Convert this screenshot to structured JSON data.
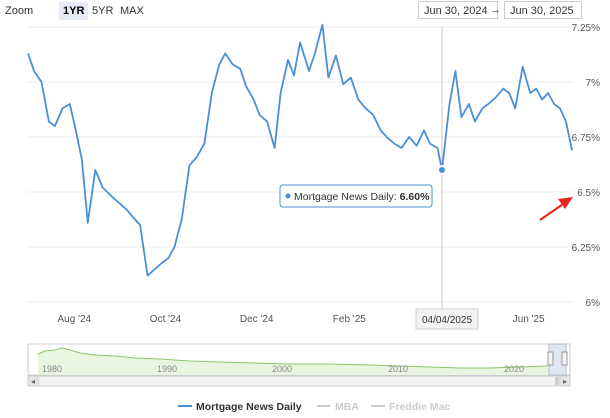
{
  "zoom": {
    "label": "Zoom",
    "buttons": [
      {
        "label": "1YR",
        "active": true
      },
      {
        "label": "5YR",
        "active": false
      },
      {
        "label": "MAX",
        "active": false
      }
    ]
  },
  "range": {
    "from": "Jun 30, 2024",
    "arrow": "→",
    "to": "Jun 30, 2025"
  },
  "tooltip": {
    "series": "Mortgage News Daily",
    "value": "6.60%"
  },
  "crosshair_label": "04/04/2025",
  "navigator": {
    "ticks": [
      "1980",
      "1990",
      "2000",
      "2010",
      "2020"
    ],
    "left_arrow": "◂",
    "right_arrow": "▸"
  },
  "legend": [
    {
      "name": "Mortgage News Daily",
      "color": "#4a90d9",
      "active": true
    },
    {
      "name": "MBA",
      "color": "#cccccc",
      "active": false
    },
    {
      "name": "Freddie Mac",
      "color": "#cccccc",
      "active": false
    }
  ],
  "annotation": {
    "type": "arrow",
    "color": "#e8281c",
    "target": "latest-value"
  },
  "chart_data": {
    "type": "line",
    "title": "",
    "xlabel": "",
    "ylabel": "",
    "x_tick_labels": [
      "Aug '24",
      "Oct '24",
      "Dec '24",
      "Feb '25",
      "Jun '25"
    ],
    "x_tick_dates": [
      "2024-08-01",
      "2024-10-01",
      "2024-12-01",
      "2025-02-01",
      "2025-06-01"
    ],
    "xlim": [
      "2024-07-01",
      "2025-06-30"
    ],
    "y_tick_labels": [
      "6%",
      "6.25%",
      "6.5%",
      "6.75%",
      "7%",
      "7.25%"
    ],
    "y_ticks": [
      6.0,
      6.25,
      6.5,
      6.75,
      7.0,
      7.25
    ],
    "ylim": [
      6.0,
      7.25
    ],
    "grid": true,
    "series": [
      {
        "name": "Mortgage News Daily",
        "color": "#4a90d9",
        "x": [
          "2024-07-01",
          "2024-07-05",
          "2024-07-10",
          "2024-07-15",
          "2024-07-19",
          "2024-07-24",
          "2024-07-29",
          "2024-08-02",
          "2024-08-06",
          "2024-08-10",
          "2024-08-15",
          "2024-08-20",
          "2024-08-26",
          "2024-08-31",
          "2024-09-05",
          "2024-09-10",
          "2024-09-14",
          "2024-09-19",
          "2024-09-24",
          "2024-09-29",
          "2024-10-03",
          "2024-10-07",
          "2024-10-12",
          "2024-10-17",
          "2024-10-22",
          "2024-10-27",
          "2024-11-01",
          "2024-11-06",
          "2024-11-10",
          "2024-11-15",
          "2024-11-20",
          "2024-11-24",
          "2024-11-29",
          "2024-12-03",
          "2024-12-08",
          "2024-12-13",
          "2024-12-17",
          "2024-12-22",
          "2024-12-26",
          "2024-12-30",
          "2025-01-05",
          "2025-01-09",
          "2025-01-14",
          "2025-01-18",
          "2025-01-23",
          "2025-01-28",
          "2025-02-02",
          "2025-02-07",
          "2025-02-12",
          "2025-02-17",
          "2025-02-22",
          "2025-02-26",
          "2025-03-03",
          "2025-03-08",
          "2025-03-13",
          "2025-03-18",
          "2025-03-23",
          "2025-03-27",
          "2025-04-01",
          "2025-04-04",
          "2025-04-09",
          "2025-04-13",
          "2025-04-17",
          "2025-04-22",
          "2025-04-26",
          "2025-05-01",
          "2025-05-05",
          "2025-05-10",
          "2025-05-15",
          "2025-05-19",
          "2025-05-23",
          "2025-05-28",
          "2025-06-02",
          "2025-06-06",
          "2025-06-10",
          "2025-06-14",
          "2025-06-18",
          "2025-06-22",
          "2025-06-26",
          "2025-06-30"
        ],
        "y": [
          7.13,
          7.05,
          7.0,
          6.82,
          6.8,
          6.88,
          6.9,
          6.78,
          6.65,
          6.36,
          6.6,
          6.52,
          6.48,
          6.45,
          6.42,
          6.38,
          6.35,
          6.12,
          6.15,
          6.18,
          6.2,
          6.25,
          6.38,
          6.62,
          6.66,
          6.72,
          6.95,
          7.08,
          7.13,
          7.08,
          7.06,
          6.98,
          6.92,
          6.85,
          6.82,
          6.7,
          6.95,
          7.1,
          7.03,
          7.18,
          7.05,
          7.13,
          7.26,
          7.02,
          7.12,
          6.99,
          7.02,
          6.92,
          6.88,
          6.85,
          6.78,
          6.75,
          6.72,
          6.7,
          6.75,
          6.71,
          6.78,
          6.72,
          6.7,
          6.6,
          6.9,
          7.05,
          6.84,
          6.9,
          6.82,
          6.88,
          6.9,
          6.93,
          6.97,
          6.95,
          6.88,
          7.07,
          6.95,
          6.97,
          6.92,
          6.95,
          6.9,
          6.88,
          6.82,
          6.69
        ]
      }
    ]
  }
}
